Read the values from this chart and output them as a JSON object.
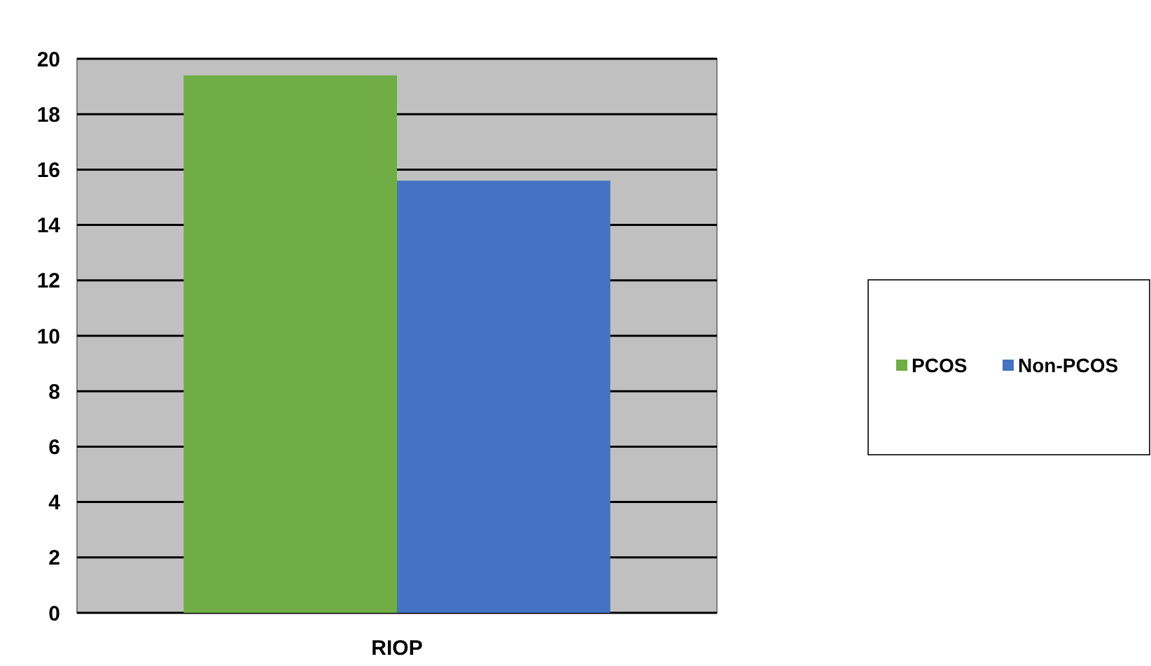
{
  "chart_data": {
    "type": "bar",
    "categories": [
      "RIOP"
    ],
    "series": [
      {
        "name": "PCOS",
        "color": "#70ad47",
        "values": [
          19.4
        ]
      },
      {
        "name": "Non-PCOS",
        "color": "#4472c4",
        "values": [
          15.6
        ]
      }
    ],
    "ylim": [
      0,
      20
    ],
    "yticks": [
      0,
      2,
      4,
      6,
      8,
      10,
      12,
      14,
      16,
      18,
      20
    ],
    "grid": "y",
    "legend": "right"
  }
}
